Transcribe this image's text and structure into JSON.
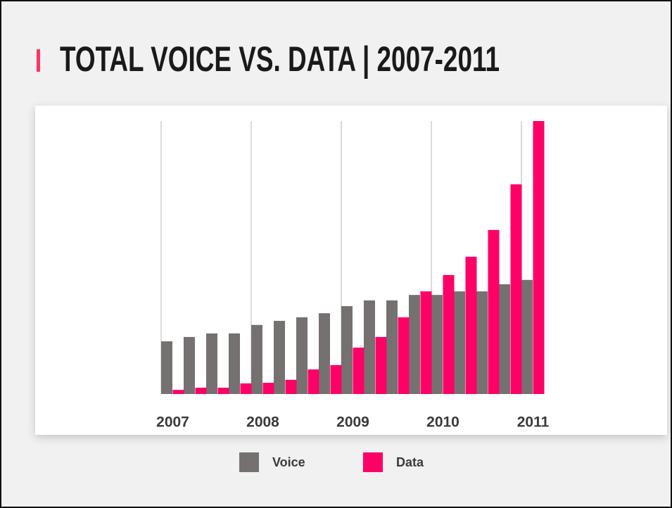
{
  "chart_data": {
    "type": "bar",
    "title": "TOTAL VOICE VS. DATA | 2007-2011",
    "categories": [
      "2007",
      null,
      null,
      null,
      "2008",
      null,
      null,
      null,
      "2009",
      null,
      null,
      null,
      "2010",
      null,
      null,
      null,
      "2011"
    ],
    "series": [
      {
        "name": "Voice",
        "color": "#767171",
        "values": [
          19.3,
          20.9,
          22.2,
          22.2,
          25.3,
          26.8,
          28.1,
          29.6,
          32.2,
          34.3,
          34.3,
          36.3,
          36.3,
          37.6,
          37.6,
          40.2,
          41.8
        ]
      },
      {
        "name": "Data",
        "color": "#ff0066",
        "values": [
          1.5,
          2.3,
          2.3,
          3.9,
          4.1,
          5.2,
          9.0,
          10.6,
          17.0,
          20.9,
          28.1,
          37.6,
          43.6,
          50.3,
          60.1,
          76.8,
          100
        ]
      }
    ],
    "grid": true
  }
}
